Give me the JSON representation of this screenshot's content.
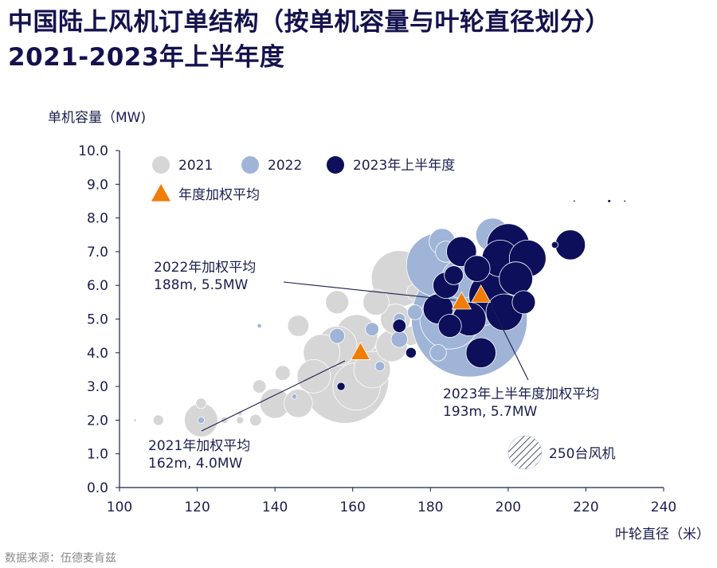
{
  "title": {
    "line1": "中国陆上风机订单结构（按单机容量与叶轮直径划分）",
    "line2": "2021-2023年上半年度"
  },
  "source": "数据来源：伍德麦肯兹",
  "colors": {
    "2021": "#d6d6d6",
    "2022": "#9fb4d6",
    "2023": "#0d0f5a",
    "avg": "#f07d06",
    "axis": "#1b1e4f",
    "bubble_outline": "#ffffff"
  },
  "chart_data": {
    "type": "scatter",
    "subtype": "bubble",
    "xlabel": "叶轮直径（米）",
    "ylabel": "单机容量（MW)",
    "xlim": [
      100,
      240
    ],
    "ylim": [
      0,
      10
    ],
    "xticks": [
      "100",
      "120",
      "140",
      "160",
      "180",
      "200",
      "220",
      "240"
    ],
    "yticks": [
      "0.0",
      "1.0",
      "2.0",
      "3.0",
      "4.0",
      "5.0",
      "6.0",
      "7.0",
      "8.0",
      "9.0",
      "10.0"
    ],
    "legend": {
      "placement": "top-left",
      "items": [
        {
          "label": "2021",
          "series": "2021"
        },
        {
          "label": "2022",
          "series": "2022"
        },
        {
          "label": "2023年上半年度",
          "series": "2023"
        },
        {
          "label": "年度加权平均",
          "series": "avg"
        }
      ]
    },
    "size_legend": {
      "label": "250台风机",
      "turbines": 250
    },
    "series": [
      {
        "name": "2021",
        "points": [
          {
            "x": 104,
            "y": 2.0,
            "turbines": 2
          },
          {
            "x": 110,
            "y": 2.0,
            "turbines": 25
          },
          {
            "x": 121,
            "y": 2.0,
            "turbines": 250
          },
          {
            "x": 121,
            "y": 2.5,
            "turbines": 25
          },
          {
            "x": 127,
            "y": 2.0,
            "turbines": 10
          },
          {
            "x": 131,
            "y": 2.0,
            "turbines": 12
          },
          {
            "x": 131,
            "y": 2.2,
            "turbines": 5
          },
          {
            "x": 135,
            "y": 2.0,
            "turbines": 30
          },
          {
            "x": 136,
            "y": 3.0,
            "turbines": 40
          },
          {
            "x": 140,
            "y": 2.5,
            "turbines": 200
          },
          {
            "x": 142,
            "y": 3.4,
            "turbines": 50
          },
          {
            "x": 146,
            "y": 2.5,
            "turbines": 180
          },
          {
            "x": 146,
            "y": 4.8,
            "turbines": 100
          },
          {
            "x": 150,
            "y": 3.3,
            "turbines": 250
          },
          {
            "x": 152,
            "y": 4.0,
            "turbines": 300
          },
          {
            "x": 156,
            "y": 4.2,
            "turbines": 350
          },
          {
            "x": 156,
            "y": 5.5,
            "turbines": 120
          },
          {
            "x": 158,
            "y": 3.2,
            "turbines": 1700
          },
          {
            "x": 161,
            "y": 3.0,
            "turbines": 500
          },
          {
            "x": 161,
            "y": 4.5,
            "turbines": 400
          },
          {
            "x": 165,
            "y": 3.5,
            "turbines": 300
          },
          {
            "x": 166,
            "y": 5.5,
            "turbines": 150
          },
          {
            "x": 170,
            "y": 4.2,
            "turbines": 220
          },
          {
            "x": 171,
            "y": 5.0,
            "turbines": 200
          },
          {
            "x": 172,
            "y": 6.2,
            "turbines": 700
          },
          {
            "x": 175,
            "y": 4.5,
            "turbines": 80
          },
          {
            "x": 176,
            "y": 5.8,
            "turbines": 60
          }
        ]
      },
      {
        "name": "2022",
        "points": [
          {
            "x": 121,
            "y": 2.0,
            "turbines": 10
          },
          {
            "x": 136,
            "y": 4.8,
            "turbines": 4
          },
          {
            "x": 145,
            "y": 2.7,
            "turbines": 6
          },
          {
            "x": 156,
            "y": 4.5,
            "turbines": 50
          },
          {
            "x": 165,
            "y": 4.7,
            "turbines": 40
          },
          {
            "x": 167,
            "y": 3.6,
            "turbines": 20
          },
          {
            "x": 172,
            "y": 4.4,
            "turbines": 60
          },
          {
            "x": 172,
            "y": 5.0,
            "turbines": 30
          },
          {
            "x": 176,
            "y": 5.2,
            "turbines": 50
          },
          {
            "x": 182,
            "y": 4.0,
            "turbines": 60
          },
          {
            "x": 182,
            "y": 6.6,
            "turbines": 900
          },
          {
            "x": 183,
            "y": 7.3,
            "turbines": 150
          },
          {
            "x": 184,
            "y": 7.0,
            "turbines": 100
          },
          {
            "x": 185,
            "y": 5.0,
            "turbines": 800
          },
          {
            "x": 188,
            "y": 6.2,
            "turbines": 350
          },
          {
            "x": 190,
            "y": 5.0,
            "turbines": 3000
          },
          {
            "x": 193,
            "y": 5.5,
            "turbines": 500
          },
          {
            "x": 195,
            "y": 6.0,
            "turbines": 250
          },
          {
            "x": 196,
            "y": 7.5,
            "turbines": 250
          },
          {
            "x": 198,
            "y": 5.3,
            "turbines": 120
          },
          {
            "x": 200,
            "y": 5.8,
            "turbines": 120
          }
        ]
      },
      {
        "name": "2023",
        "points": [
          {
            "x": 157,
            "y": 3.0,
            "turbines": 15
          },
          {
            "x": 172,
            "y": 4.8,
            "turbines": 40
          },
          {
            "x": 175,
            "y": 4.0,
            "turbines": 25
          },
          {
            "x": 182,
            "y": 5.3,
            "turbines": 200
          },
          {
            "x": 184,
            "y": 6.0,
            "turbines": 150
          },
          {
            "x": 185,
            "y": 4.8,
            "turbines": 120
          },
          {
            "x": 186,
            "y": 6.3,
            "turbines": 80
          },
          {
            "x": 188,
            "y": 7.0,
            "turbines": 200
          },
          {
            "x": 190,
            "y": 5.0,
            "turbines": 250
          },
          {
            "x": 192,
            "y": 6.5,
            "turbines": 150
          },
          {
            "x": 193,
            "y": 4.0,
            "turbines": 200
          },
          {
            "x": 196,
            "y": 5.7,
            "turbines": 500
          },
          {
            "x": 198,
            "y": 6.8,
            "turbines": 300
          },
          {
            "x": 199,
            "y": 5.2,
            "turbines": 300
          },
          {
            "x": 200,
            "y": 7.2,
            "turbines": 400
          },
          {
            "x": 202,
            "y": 6.2,
            "turbines": 250
          },
          {
            "x": 204,
            "y": 5.5,
            "turbines": 120
          },
          {
            "x": 205,
            "y": 6.8,
            "turbines": 300
          },
          {
            "x": 212,
            "y": 7.2,
            "turbines": 10
          },
          {
            "x": 216,
            "y": 7.2,
            "turbines": 200
          },
          {
            "x": 217,
            "y": 8.5,
            "turbines": 1
          },
          {
            "x": 226,
            "y": 8.5,
            "turbines": 2
          },
          {
            "x": 230,
            "y": 8.5,
            "turbines": 1
          }
        ]
      }
    ],
    "weighted_averages": [
      {
        "year": "2021",
        "x": 162,
        "y": 4.0,
        "label_line1": "2021年加权平均",
        "label_line2": "162m, 4.0MW"
      },
      {
        "year": "2022",
        "x": 188,
        "y": 5.5,
        "label_line1": "2022年加权平均",
        "label_line2": "188m, 5.5MW"
      },
      {
        "year": "2023",
        "x": 193,
        "y": 5.7,
        "label_line1": "2023年上半年度加权平均",
        "label_line2": "193m, 5.7MW"
      }
    ]
  }
}
